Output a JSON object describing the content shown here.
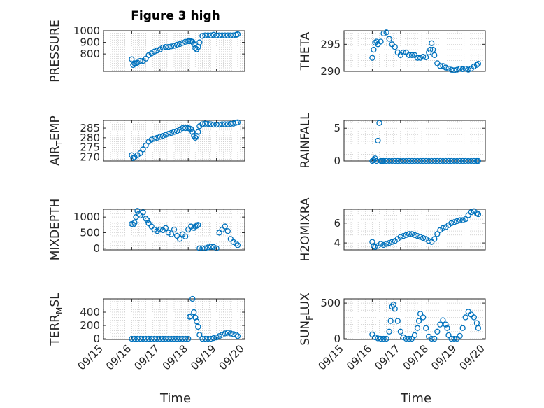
{
  "figure": {
    "title": "Figure 3 high",
    "xlabel": "Time"
  },
  "colors": {
    "marker": "#0072bd",
    "axis": "#262626",
    "grid": "#c8c8c8",
    "background": "#ffffff"
  },
  "chart_data": [
    {
      "type": "scatter",
      "ylabel": "PRESSURE",
      "ylim": [
        650,
        1000
      ],
      "yticks": [
        800,
        900,
        1000
      ],
      "xlim": [
        15,
        20
      ],
      "grid": true,
      "marker": "circle",
      "x": [
        16.0,
        16.05,
        16.1,
        16.15,
        16.2,
        16.3,
        16.4,
        16.5,
        16.6,
        16.7,
        16.8,
        16.9,
        17.0,
        17.1,
        17.2,
        17.3,
        17.4,
        17.5,
        17.6,
        17.7,
        17.8,
        17.9,
        18.0,
        18.05,
        18.1,
        18.15,
        18.2,
        18.25,
        18.3,
        18.35,
        18.4,
        18.5,
        18.6,
        18.7,
        18.8,
        18.9,
        19.0,
        19.1,
        19.2,
        19.3,
        19.4,
        19.5,
        19.6,
        19.7,
        19.75
      ],
      "y": [
        755,
        705,
        720,
        720,
        725,
        740,
        740,
        760,
        790,
        805,
        820,
        830,
        840,
        855,
        860,
        860,
        865,
        870,
        880,
        885,
        895,
        905,
        910,
        910,
        910,
        905,
        885,
        850,
        840,
        860,
        900,
        955,
        960,
        960,
        960,
        965,
        960,
        960,
        960,
        960,
        960,
        960,
        960,
        965,
        970
      ]
    },
    {
      "type": "scatter",
      "ylabel": "THETA",
      "ylim": [
        290,
        297.5
      ],
      "yticks": [
        290,
        295
      ],
      "xlim": [
        15,
        20
      ],
      "grid": true,
      "marker": "circle",
      "x": [
        16.0,
        16.05,
        16.1,
        16.15,
        16.2,
        16.3,
        16.4,
        16.5,
        16.6,
        16.7,
        16.8,
        16.9,
        17.0,
        17.1,
        17.2,
        17.3,
        17.4,
        17.5,
        17.6,
        17.7,
        17.8,
        17.9,
        18.0,
        18.05,
        18.1,
        18.15,
        18.2,
        18.3,
        18.4,
        18.5,
        18.6,
        18.7,
        18.8,
        18.9,
        19.0,
        19.1,
        19.2,
        19.3,
        19.4,
        19.5,
        19.6,
        19.7,
        19.75
      ],
      "y": [
        292.5,
        294,
        295.3,
        295.5,
        295,
        295.5,
        297,
        297.2,
        296,
        295,
        294.5,
        293.5,
        293,
        293.5,
        293.5,
        293,
        293,
        293,
        292.5,
        292.5,
        292.7,
        292.6,
        293.5,
        294,
        295.2,
        294,
        293,
        291.5,
        291,
        291,
        290.7,
        290.5,
        290.3,
        290.2,
        290.3,
        290.5,
        290.4,
        290.5,
        290.3,
        290.5,
        290.9,
        291.2,
        291.4
      ]
    },
    {
      "type": "scatter",
      "ylabel": "AIR_TEMP",
      "ylim": [
        268,
        289
      ],
      "yticks": [
        270,
        275,
        280,
        285
      ],
      "xlim": [
        15,
        20
      ],
      "grid": true,
      "marker": "circle",
      "x": [
        16.0,
        16.05,
        16.1,
        16.2,
        16.3,
        16.4,
        16.5,
        16.6,
        16.7,
        16.8,
        16.9,
        17.0,
        17.1,
        17.2,
        17.3,
        17.4,
        17.5,
        17.6,
        17.7,
        17.8,
        17.9,
        18.0,
        18.05,
        18.1,
        18.15,
        18.2,
        18.25,
        18.3,
        18.35,
        18.4,
        18.5,
        18.6,
        18.7,
        18.8,
        18.9,
        19.0,
        19.1,
        19.2,
        19.3,
        19.4,
        19.5,
        19.6,
        19.7,
        19.75
      ],
      "y": [
        271,
        269.5,
        270,
        271,
        272,
        274,
        276,
        278,
        279,
        279.5,
        280,
        280.5,
        281,
        281.5,
        282,
        282.5,
        283,
        283.5,
        284,
        285,
        285,
        285,
        284.8,
        284.5,
        283,
        281,
        280,
        281,
        283,
        286,
        287,
        287.3,
        287.2,
        287,
        286.8,
        286.8,
        286.8,
        287,
        287,
        287,
        287.2,
        287.3,
        287.8,
        288
      ]
    },
    {
      "type": "scatter",
      "ylabel": "RAINFALL",
      "ylim": [
        0,
        6.2
      ],
      "yticks": [
        0,
        5
      ],
      "xlim": [
        15,
        20
      ],
      "grid": true,
      "marker": "circle",
      "x": [
        16.0,
        16.05,
        16.1,
        16.15,
        16.2,
        16.25,
        16.3,
        16.35,
        16.4,
        16.5,
        16.6,
        16.7,
        16.8,
        16.9,
        17.0,
        17.1,
        17.2,
        17.3,
        17.4,
        17.5,
        17.6,
        17.7,
        17.8,
        17.9,
        18.0,
        18.1,
        18.2,
        18.3,
        18.4,
        18.5,
        18.6,
        18.7,
        18.8,
        18.9,
        19.0,
        19.1,
        19.2,
        19.3,
        19.4,
        19.5,
        19.6,
        19.7,
        19.75
      ],
      "y": [
        0,
        0.1,
        0.4,
        0,
        3.1,
        5.8,
        0,
        0,
        0,
        0,
        0,
        0,
        0,
        0,
        0,
        0,
        0,
        0,
        0,
        0,
        0,
        0,
        0,
        0,
        0,
        0,
        0,
        0,
        0,
        0,
        0,
        0,
        0,
        0,
        0,
        0,
        0,
        0,
        0,
        0,
        0,
        0,
        0
      ]
    },
    {
      "type": "scatter",
      "ylabel": "MIXDEPTH",
      "ylim": [
        -50,
        1250
      ],
      "yticks": [
        0,
        500,
        1000
      ],
      "xlim": [
        15,
        20
      ],
      "grid": true,
      "marker": "circle",
      "x": [
        16.0,
        16.05,
        16.1,
        16.15,
        16.2,
        16.25,
        16.3,
        16.4,
        16.5,
        16.55,
        16.6,
        16.7,
        16.8,
        16.9,
        17.0,
        17.1,
        17.2,
        17.3,
        17.4,
        17.5,
        17.6,
        17.7,
        17.8,
        17.9,
        18.0,
        18.1,
        18.2,
        18.25,
        18.3,
        18.35,
        18.4,
        18.5,
        18.6,
        18.7,
        18.8,
        18.9,
        19.0,
        19.1,
        19.2,
        19.3,
        19.4,
        19.5,
        19.6,
        19.7,
        19.75
      ],
      "y": [
        780,
        760,
        820,
        1000,
        1200,
        1100,
        1050,
        1150,
        950,
        900,
        800,
        700,
        600,
        550,
        600,
        580,
        650,
        500,
        450,
        600,
        400,
        300,
        450,
        380,
        600,
        700,
        650,
        700,
        720,
        750,
        0,
        0,
        0,
        30,
        50,
        40,
        0,
        500,
        600,
        700,
        550,
        300,
        200,
        150,
        100
      ]
    },
    {
      "type": "scatter",
      "ylabel": "H2OMIXRA",
      "ylim": [
        3.3,
        7.4
      ],
      "yticks": [
        4,
        6
      ],
      "xlim": [
        15,
        20
      ],
      "grid": true,
      "marker": "circle",
      "x": [
        16.0,
        16.05,
        16.1,
        16.2,
        16.3,
        16.4,
        16.5,
        16.6,
        16.7,
        16.8,
        16.9,
        17.0,
        17.1,
        17.2,
        17.3,
        17.4,
        17.5,
        17.6,
        17.7,
        17.8,
        17.9,
        18.0,
        18.1,
        18.2,
        18.3,
        18.4,
        18.5,
        18.6,
        18.7,
        18.8,
        18.9,
        19.0,
        19.1,
        19.2,
        19.3,
        19.4,
        19.5,
        19.6,
        19.7,
        19.75
      ],
      "y": [
        4.1,
        3.7,
        3.6,
        3.7,
        3.9,
        3.8,
        3.9,
        4.0,
        4.1,
        4.2,
        4.4,
        4.6,
        4.7,
        4.8,
        4.9,
        4.9,
        4.8,
        4.7,
        4.6,
        4.5,
        4.4,
        4.2,
        4.1,
        4.4,
        4.9,
        5.3,
        5.5,
        5.6,
        5.8,
        6.0,
        6.1,
        6.2,
        6.3,
        6.3,
        6.4,
        6.8,
        7.1,
        7.2,
        7.0,
        6.9
      ]
    },
    {
      "type": "scatter",
      "ylabel": "TERR_MSL",
      "ylim": [
        -10,
        600
      ],
      "yticks": [
        0,
        200,
        400
      ],
      "xlim": [
        15,
        20
      ],
      "grid": true,
      "marker": "circle",
      "x": [
        16.0,
        16.1,
        16.2,
        16.3,
        16.4,
        16.5,
        16.6,
        16.7,
        16.8,
        16.9,
        17.0,
        17.1,
        17.2,
        17.3,
        17.4,
        17.5,
        17.6,
        17.7,
        17.8,
        17.9,
        18.0,
        18.05,
        18.1,
        18.15,
        18.2,
        18.25,
        18.3,
        18.35,
        18.4,
        18.5,
        18.6,
        18.7,
        18.8,
        18.9,
        19.0,
        19.1,
        19.2,
        19.3,
        19.4,
        19.5,
        19.6,
        19.7,
        19.75
      ],
      "y": [
        0,
        0,
        0,
        0,
        0,
        0,
        0,
        0,
        0,
        0,
        0,
        0,
        0,
        0,
        0,
        0,
        0,
        0,
        0,
        0,
        0,
        330,
        340,
        600,
        400,
        320,
        260,
        180,
        60,
        0,
        0,
        0,
        0,
        10,
        20,
        40,
        60,
        80,
        90,
        80,
        70,
        60,
        40
      ]
    },
    {
      "type": "scatter",
      "ylabel": "SUN_FLUX",
      "ylim": [
        -10,
        560
      ],
      "yticks": [
        0,
        500
      ],
      "xlim": [
        15,
        20
      ],
      "grid": true,
      "marker": "circle",
      "x": [
        16.0,
        16.1,
        16.2,
        16.3,
        16.4,
        16.5,
        16.6,
        16.65,
        16.7,
        16.75,
        16.8,
        16.9,
        17.0,
        17.1,
        17.2,
        17.3,
        17.4,
        17.5,
        17.6,
        17.65,
        17.7,
        17.8,
        17.9,
        18.0,
        18.1,
        18.2,
        18.3,
        18.4,
        18.5,
        18.6,
        18.65,
        18.7,
        18.8,
        18.9,
        19.0,
        19.1,
        19.2,
        19.3,
        19.4,
        19.5,
        19.6,
        19.7,
        19.75
      ],
      "y": [
        60,
        20,
        5,
        0,
        0,
        0,
        100,
        250,
        450,
        480,
        420,
        250,
        100,
        20,
        0,
        0,
        0,
        50,
        150,
        250,
        350,
        300,
        150,
        30,
        0,
        0,
        100,
        200,
        260,
        200,
        150,
        50,
        0,
        0,
        0,
        40,
        150,
        300,
        380,
        340,
        300,
        220,
        150
      ]
    }
  ],
  "shared_axes": {
    "xtick_labels": [
      "09/15",
      "09/16",
      "09/17",
      "09/18",
      "09/19",
      "09/20"
    ],
    "xtick_values": [
      15,
      16,
      17,
      18,
      19,
      20
    ]
  }
}
